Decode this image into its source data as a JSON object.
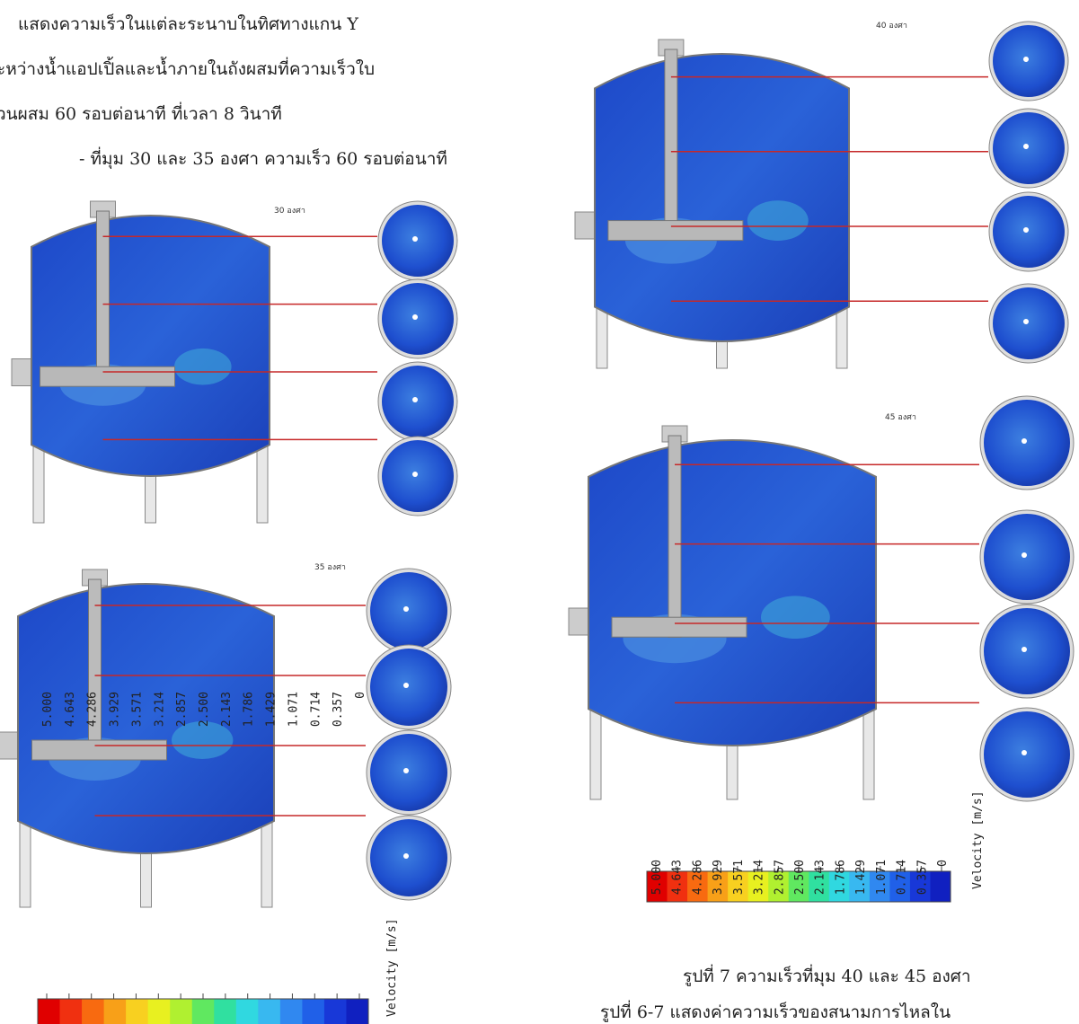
{
  "intro": {
    "lines": [
      "แสดงความเร็วในแต่ละระนาบในทิศทางแกน Y",
      "ะหว่างน้ำแอปเปิ้ลและน้ำภายในถังผสมที่ความเร็วใบ",
      "วนผสม 60 รอบต่อนาที ที่เวลา 8 วินาที"
    ],
    "subheading": "- ที่มุม 30 และ 35 องศา ความเร็ว 60 รอบต่อนาที"
  },
  "panels": [
    {
      "label": "30 องศา"
    },
    {
      "label": "35 องศา"
    },
    {
      "label": "40 องศา"
    },
    {
      "label": "45 องศา"
    }
  ],
  "legends": [
    {
      "ticks": [
        "5.000",
        "4.643",
        "4.286",
        "3.929",
        "3.571",
        "3.214",
        "2.857",
        "2.500",
        "2.143",
        "1.786",
        "1.429",
        "1.071",
        "0.714",
        "0.357",
        "0"
      ],
      "title": "Velocity [m/s]"
    },
    {
      "ticks": [
        "5.000",
        "4.643",
        "4.286",
        "3.929",
        "3.571",
        "3.214",
        "2.857",
        "2.500",
        "2.143",
        "1.786",
        "1.429",
        "1.071",
        "0.714",
        "0.357",
        "0"
      ],
      "title": "Velocity [m/s]"
    }
  ],
  "captions": [
    "รูปที่ 7 ความเร็วที่มุม 40 และ 45 องศา",
    "รูปที่ 6-7 แสดงค่าความเร็วของสนามการไหลใน"
  ]
}
